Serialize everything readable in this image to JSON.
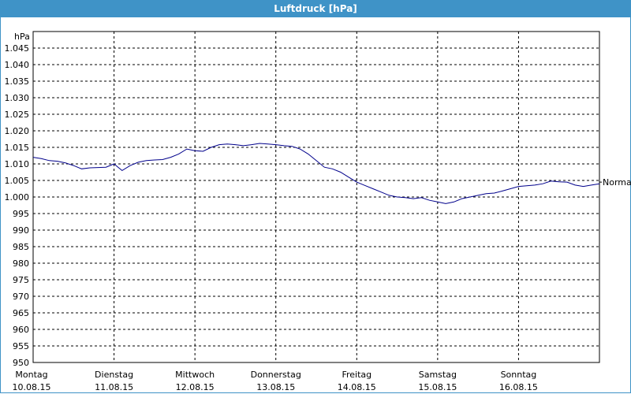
{
  "window": {
    "title": "Luftdruck [hPa]"
  },
  "chart_data": {
    "type": "line",
    "title": "Luftdruck [hPa]",
    "ylabel": "hPa",
    "xlabel": "",
    "ylim": [
      950,
      1050
    ],
    "yticks": [
      "950",
      "955",
      "960",
      "965",
      "970",
      "975",
      "980",
      "985",
      "990",
      "995",
      "1.000",
      "1.005",
      "1.010",
      "1.015",
      "1.020",
      "1.025",
      "1.030",
      "1.035",
      "1.040",
      "1.045"
    ],
    "ytick_values": [
      950,
      955,
      960,
      965,
      970,
      975,
      980,
      985,
      990,
      995,
      1000,
      1005,
      1010,
      1015,
      1020,
      1025,
      1030,
      1035,
      1040,
      1045
    ],
    "xlim": [
      0,
      7
    ],
    "xticks": [
      {
        "day": "Montag",
        "date": "10.08.15",
        "x": 0
      },
      {
        "day": "Dienstag",
        "date": "11.08.15",
        "x": 1
      },
      {
        "day": "Mittwoch",
        "date": "12.08.15",
        "x": 2
      },
      {
        "day": "Donnerstag",
        "date": "13.08.15",
        "x": 3
      },
      {
        "day": "Freitag",
        "date": "14.08.15",
        "x": 4
      },
      {
        "day": "Samstag",
        "date": "15.08.15",
        "x": 5
      },
      {
        "day": "Sonntag",
        "date": "16.08.15",
        "x": 6
      }
    ],
    "grid": true,
    "line_color": "#00008b",
    "annotation": {
      "text": "Normal",
      "value": 1004.5
    },
    "series": [
      {
        "x": [
          0,
          0.1,
          0.2,
          0.3,
          0.4,
          0.5,
          0.6,
          0.7,
          0.8,
          0.9,
          1.0,
          1.05,
          1.1,
          1.2,
          1.3,
          1.4,
          1.5,
          1.6,
          1.7,
          1.8,
          1.9,
          2.0,
          2.1,
          2.2,
          2.3,
          2.4,
          2.5,
          2.6,
          2.7,
          2.8,
          2.9,
          3.0,
          3.1,
          3.2,
          3.3,
          3.4,
          3.5,
          3.6,
          3.7,
          3.8,
          3.9,
          4.0,
          4.1,
          4.2,
          4.3,
          4.4,
          4.5,
          4.6,
          4.7,
          4.8,
          4.9,
          5.0,
          5.1,
          5.2,
          5.3,
          5.4,
          5.5,
          5.6,
          5.7,
          5.8,
          5.9,
          6.0,
          6.1,
          6.2,
          6.3,
          6.4,
          6.5,
          6.6,
          6.7,
          6.8,
          6.9,
          7.0
        ],
        "values": [
          1012,
          1011.6,
          1011,
          1010.8,
          1010.3,
          1009.5,
          1008.5,
          1008.8,
          1008.9,
          1009,
          1010,
          1009,
          1008,
          1009.5,
          1010.5,
          1011,
          1011.2,
          1011.3,
          1012,
          1013,
          1014.5,
          1014,
          1013.8,
          1015,
          1015.8,
          1016,
          1015.8,
          1015.5,
          1015.8,
          1016.2,
          1016,
          1015.8,
          1015.5,
          1015.3,
          1014.5,
          1013,
          1011,
          1009,
          1008.5,
          1007.5,
          1006,
          1004.5,
          1003.5,
          1002.5,
          1001.5,
          1000.5,
          1000,
          999.8,
          999.5,
          999.8,
          999,
          998.5,
          998,
          998.5,
          999.5,
          1000,
          1000.5,
          1001,
          1001.2,
          1001.8,
          1002.5,
          1003.2,
          1003.4,
          1003.6,
          1004,
          1004.8,
          1004.6,
          1004.5,
          1003.6,
          1003.2,
          1003.6,
          1004
        ]
      }
    ]
  }
}
